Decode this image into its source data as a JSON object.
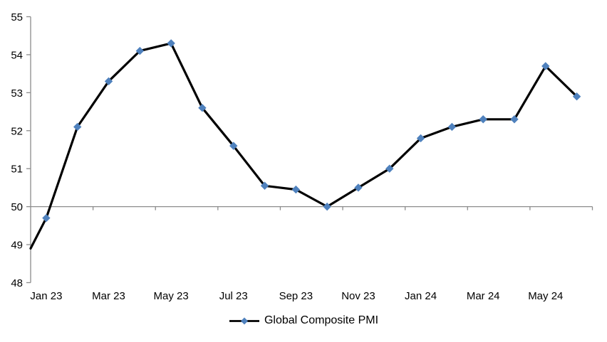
{
  "chart_data": {
    "type": "line",
    "title": "",
    "series": [
      {
        "name": "Global Composite PMI",
        "x": [
          "Jan 23",
          "Feb 23",
          "Mar 23",
          "Apr 23",
          "May 23",
          "Jun 23",
          "Jul 23",
          "Aug 23",
          "Sep 23",
          "Oct 23",
          "Nov 23",
          "Dec 23",
          "Jan 24",
          "Feb 24",
          "Mar 24",
          "Apr 24",
          "May 24",
          "Jun 24"
        ],
        "values": [
          49.7,
          52.1,
          53.3,
          54.1,
          54.3,
          52.6,
          51.6,
          50.55,
          50.45,
          50.0,
          50.5,
          51.0,
          51.8,
          52.1,
          52.3,
          52.3,
          53.7,
          52.9
        ],
        "line_color": "#000000",
        "marker_color": "#4F81BD",
        "marker": "diamond"
      }
    ],
    "line_enters_left_edge_at": 48.9,
    "x_tick_labels": [
      "Jan 23",
      "Mar 23",
      "May 23",
      "Jul 23",
      "Sep 23",
      "Nov 23",
      "Jan 24",
      "Mar 24",
      "May 24"
    ],
    "x_tick_label_interval": 2,
    "y_ticks": [
      55,
      54,
      53,
      52,
      51,
      50,
      49,
      48
    ],
    "ylim": [
      48,
      55
    ],
    "x_axis_crosses_at": 50,
    "grid": false,
    "axis_color": "#8C8C8C",
    "background_color": "#FFFFFF",
    "legend_position": "bottom"
  }
}
